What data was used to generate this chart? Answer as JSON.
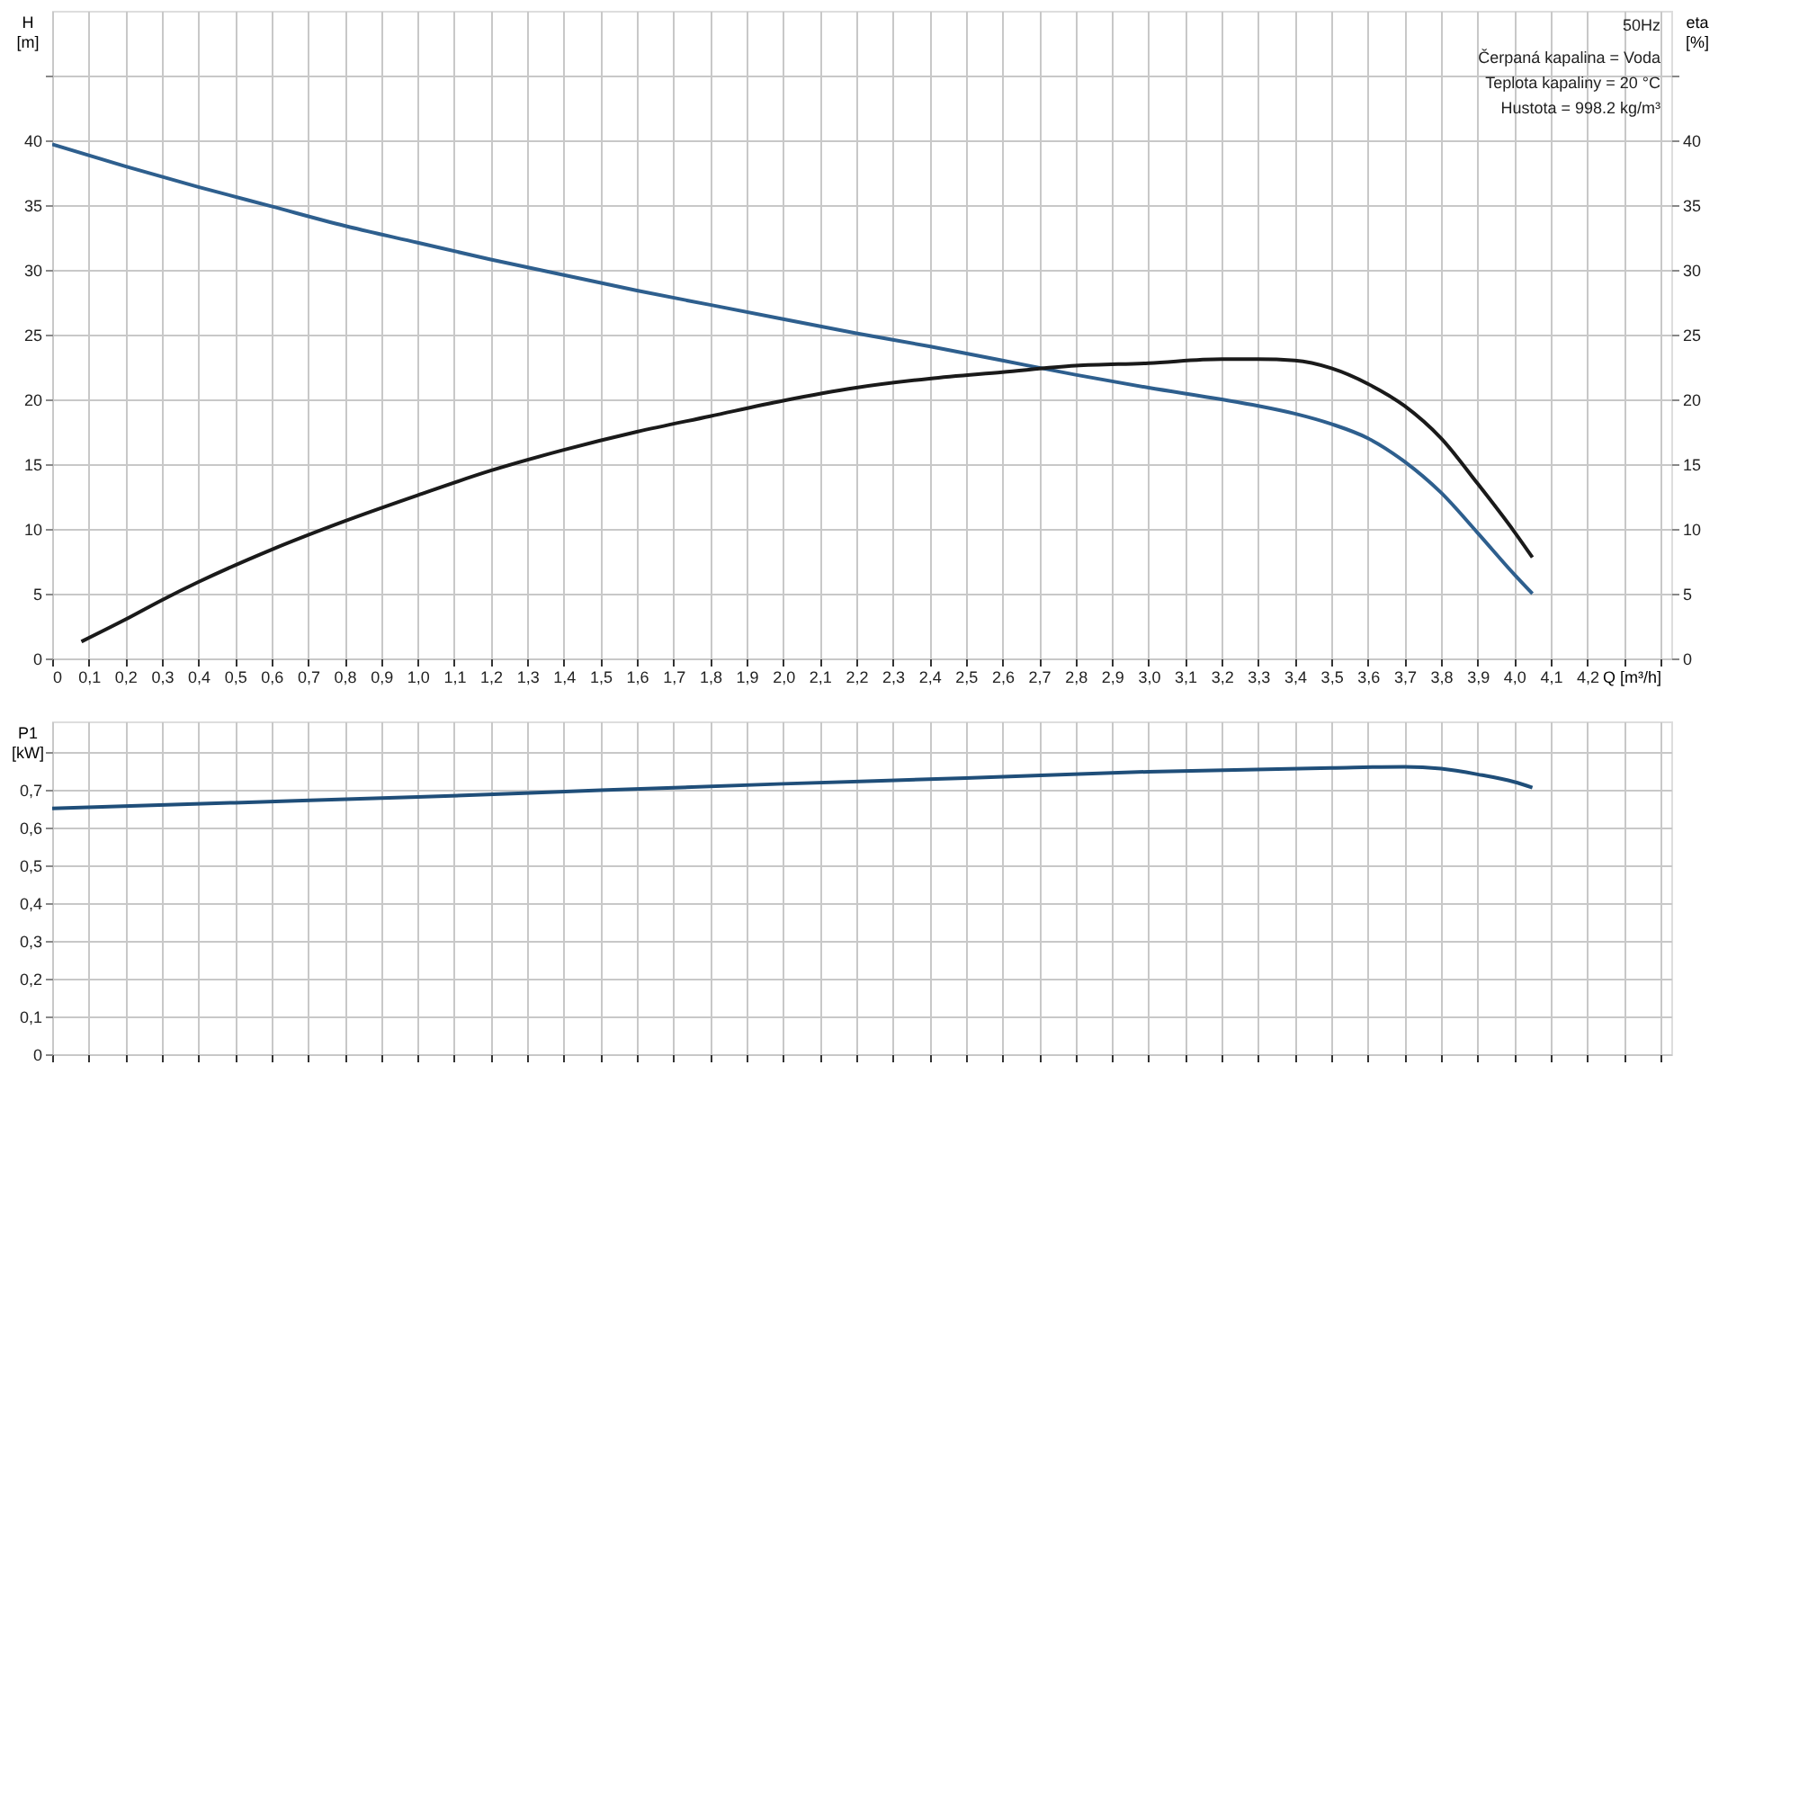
{
  "chart_data": [
    {
      "type": "line",
      "ylabel": "H [m]",
      "y2label": "eta [%]",
      "xlabel": "Q [m³/h]",
      "annotations": [
        "50Hz",
        "Čerpaná kapalina = Voda",
        "Teplota kapaliny = 20 °C",
        "Hustota = 998.2 kg/m³"
      ],
      "xlim": [
        0,
        4.43
      ],
      "xticks": [
        0,
        {
          "value": 0.1,
          "label": "0,1"
        },
        {
          "value": 0.2,
          "label": "0,2"
        },
        {
          "value": 0.3,
          "label": "0,3"
        },
        {
          "value": 0.4,
          "label": "0,4"
        },
        {
          "value": 0.5,
          "label": "0,5"
        },
        {
          "value": 0.6,
          "label": "0,6"
        },
        {
          "value": 0.7,
          "label": "0,7"
        },
        {
          "value": 0.8,
          "label": "0,8"
        },
        {
          "value": 0.9,
          "label": "0,9"
        },
        {
          "value": 1.0,
          "label": "1,0"
        },
        {
          "value": 1.1,
          "label": "1,1"
        },
        {
          "value": 1.2,
          "label": "1,2"
        },
        {
          "value": 1.3,
          "label": "1,3"
        },
        {
          "value": 1.4,
          "label": "1,4"
        },
        {
          "value": 1.5,
          "label": "1,5"
        },
        {
          "value": 1.6,
          "label": "1,6"
        },
        {
          "value": 1.7,
          "label": "1,7"
        },
        {
          "value": 1.8,
          "label": "1,8"
        },
        {
          "value": 1.9,
          "label": "1,9"
        },
        {
          "value": 2.0,
          "label": "2,0"
        },
        {
          "value": 2.1,
          "label": "2,1"
        },
        {
          "value": 2.2,
          "label": "2,2"
        },
        {
          "value": 2.3,
          "label": "2,3"
        },
        {
          "value": 2.4,
          "label": "2,4"
        },
        {
          "value": 2.5,
          "label": "2,5"
        },
        {
          "value": 2.6,
          "label": "2,6"
        },
        {
          "value": 2.7,
          "label": "2,7"
        },
        {
          "value": 2.8,
          "label": "2,8"
        },
        {
          "value": 2.9,
          "label": "2,9"
        },
        {
          "value": 3.0,
          "label": "3,0"
        },
        {
          "value": 3.1,
          "label": "3,1"
        },
        {
          "value": 3.2,
          "label": "3,2"
        },
        {
          "value": 3.3,
          "label": "3,3"
        },
        {
          "value": 3.4,
          "label": "3,4"
        },
        {
          "value": 3.5,
          "label": "3,5"
        },
        {
          "value": 3.6,
          "label": "3,6"
        },
        {
          "value": 3.7,
          "label": "3,7"
        },
        {
          "value": 3.8,
          "label": "3,8"
        },
        {
          "value": 3.9,
          "label": "3,9"
        },
        {
          "value": 4.0,
          "label": "4,0"
        },
        {
          "value": 4.1,
          "label": "4,1"
        },
        {
          "value": 4.2,
          "label": "4,2"
        },
        {
          "value": 4.3,
          "label": null
        },
        {
          "value": 4.4,
          "label": null
        }
      ],
      "ylim": [
        0,
        50
      ],
      "yticks": [
        0,
        5,
        10,
        15,
        20,
        25,
        30,
        35,
        40,
        {
          "value": 45,
          "label": null
        }
      ],
      "y2lim": [
        0,
        50
      ],
      "y2ticks": [
        0,
        5,
        10,
        15,
        20,
        25,
        30,
        35,
        40,
        {
          "value": 45,
          "label": null
        }
      ],
      "grid": true,
      "line_style": "solid",
      "series": [
        {
          "color": "#2e5f8e",
          "x": [
            0,
            0.2,
            0.4,
            0.6,
            0.8,
            1.0,
            1.2,
            1.4,
            1.6,
            1.8,
            2.0,
            2.2,
            2.4,
            2.6,
            2.8,
            3.0,
            3.2,
            3.3,
            3.4,
            3.5,
            3.6,
            3.7,
            3.8,
            3.9,
            4.0,
            4.05
          ],
          "values": [
            39.7,
            38.0,
            36.4,
            34.9,
            33.4,
            32.1,
            30.8,
            29.6,
            28.4,
            27.3,
            26.2,
            25.1,
            24.1,
            23.0,
            21.9,
            20.9,
            20.0,
            19.5,
            18.9,
            18.1,
            17.0,
            15.2,
            12.8,
            9.7,
            6.5,
            5.0
          ]
        },
        {
          "color": "#1a1a1a",
          "axis": "y2",
          "x": [
            0.08,
            0.2,
            0.3,
            0.4,
            0.6,
            0.8,
            1.0,
            1.2,
            1.4,
            1.6,
            1.8,
            2.0,
            2.2,
            2.4,
            2.6,
            2.8,
            3.0,
            3.2,
            3.3,
            3.4,
            3.5,
            3.6,
            3.7,
            3.8,
            3.9,
            4.0,
            4.05
          ],
          "values": [
            1.3,
            3.0,
            4.5,
            5.9,
            8.4,
            10.6,
            12.6,
            14.5,
            16.1,
            17.5,
            18.7,
            19.9,
            20.9,
            21.6,
            22.1,
            22.6,
            22.8,
            23.1,
            23.1,
            23.0,
            22.4,
            21.2,
            19.5,
            17.0,
            13.5,
            9.8,
            7.8
          ]
        }
      ]
    },
    {
      "type": "line",
      "ylabel": "P1 [kW]",
      "tick_labels": "y",
      "xlim": [
        0,
        4.43
      ],
      "xticks": [
        0,
        0.1,
        0.2,
        0.3,
        0.4,
        0.5,
        0.6,
        0.7,
        0.8,
        0.9,
        1.0,
        1.1,
        1.2,
        1.3,
        1.4,
        1.5,
        1.6,
        1.7,
        1.8,
        1.9,
        2.0,
        2.1,
        2.2,
        2.3,
        2.4,
        2.5,
        2.6,
        2.7,
        2.8,
        2.9,
        3.0,
        3.1,
        3.2,
        3.3,
        3.4,
        3.5,
        3.6,
        3.7,
        3.8,
        3.9,
        4.0,
        4.1,
        4.2,
        4.3,
        4.4
      ],
      "ylim": [
        0,
        0.88
      ],
      "yticks": [
        0,
        {
          "value": 0.1,
          "label": "0,1"
        },
        {
          "value": 0.2,
          "label": "0,2"
        },
        {
          "value": 0.3,
          "label": "0,3"
        },
        {
          "value": 0.4,
          "label": "0,4"
        },
        {
          "value": 0.5,
          "label": "0,5"
        },
        {
          "value": 0.6,
          "label": "0,6"
        },
        {
          "value": 0.7,
          "label": "0,7"
        },
        {
          "value": 0.8,
          "label": null
        }
      ],
      "grid": true,
      "line_style": "solid",
      "series": [
        {
          "color": "#1f4e79",
          "x": [
            0,
            0.5,
            1.0,
            1.5,
            2.0,
            2.5,
            3.0,
            3.5,
            3.7,
            3.8,
            3.9,
            4.0,
            4.05
          ],
          "values": [
            0.65,
            0.665,
            0.68,
            0.698,
            0.715,
            0.73,
            0.747,
            0.757,
            0.76,
            0.755,
            0.74,
            0.72,
            0.705
          ]
        }
      ]
    }
  ]
}
